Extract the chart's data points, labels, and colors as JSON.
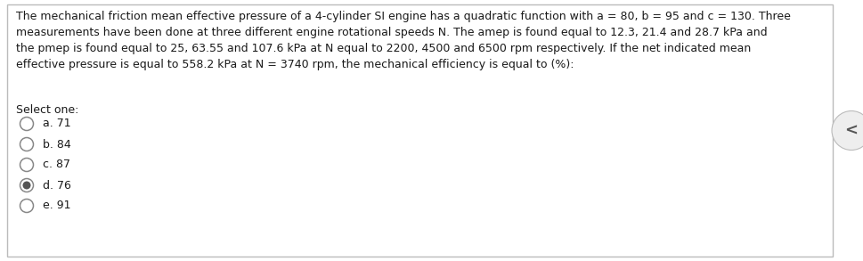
{
  "question_text": "The mechanical friction mean effective pressure of a 4-cylinder SI engine has a quadratic function with a = 80, b = 95 and c = 130. Three\nmeasurements have been done at three different engine rotational speeds N. The amep is found equal to 12.3, 21.4 and 28.7 kPa and\nthe pmep is found equal to 25, 63.55 and 107.6 kPa at N equal to 2200, 4500 and 6500 rpm respectively. If the net indicated mean\neffective pressure is equal to 558.2 kPa at N = 3740 rpm, the mechanical efficiency is equal to (%):",
  "select_one_label": "Select one:",
  "options": [
    {
      "label": "a. 71",
      "selected": false
    },
    {
      "label": "b. 84",
      "selected": false
    },
    {
      "label": "c. 87",
      "selected": false
    },
    {
      "label": "d. 76",
      "selected": true
    },
    {
      "label": "e. 91",
      "selected": false
    }
  ],
  "background_color": "#ffffff",
  "border_color": "#bbbbbb",
  "text_color": "#1a1a1a",
  "font_size": 9.0,
  "select_font_size": 9.0,
  "option_font_size": 9.0,
  "radio_unselected_facecolor": "#ffffff",
  "radio_selected_facecolor": "#555555",
  "radio_edge_color": "#888888",
  "arrow_bg_color": "#e8e8e8",
  "arrow_text_color": "#555555",
  "arrow_text": "<"
}
